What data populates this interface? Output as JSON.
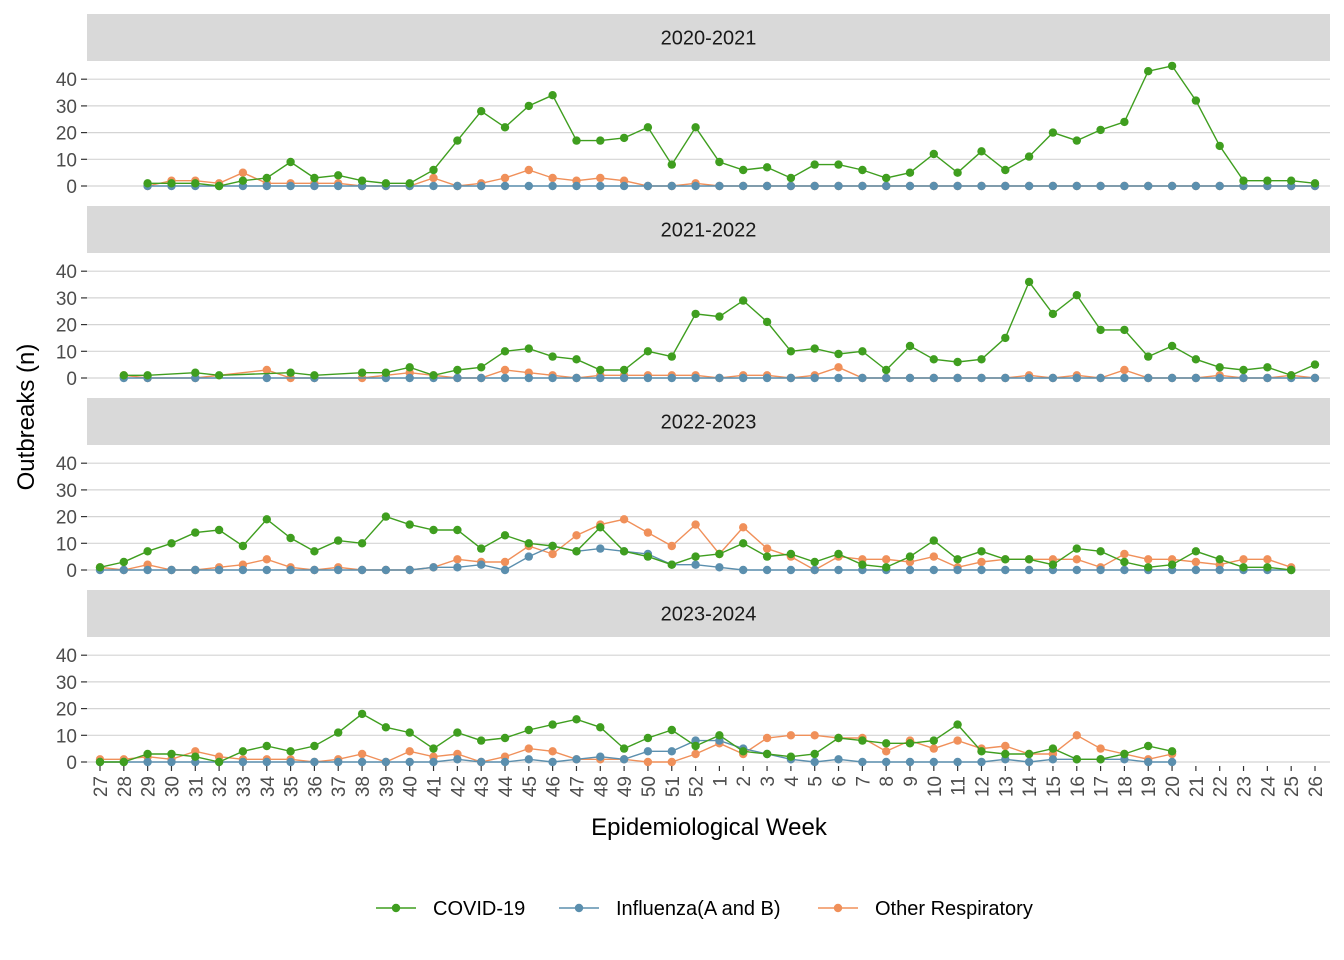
{
  "chart_data": {
    "type": "line",
    "xlabel": "Epidemiological Week",
    "ylabel": "Outbreaks (n)",
    "ylim": [
      0,
      45
    ],
    "yticks": [
      0,
      10,
      20,
      30,
      40
    ],
    "x_categories": [
      "27",
      "28",
      "29",
      "30",
      "31",
      "32",
      "33",
      "34",
      "35",
      "36",
      "37",
      "38",
      "39",
      "40",
      "41",
      "42",
      "43",
      "44",
      "45",
      "46",
      "47",
      "48",
      "49",
      "50",
      "51",
      "52",
      "1",
      "2",
      "3",
      "4",
      "5",
      "6",
      "7",
      "8",
      "9",
      "10",
      "11",
      "12",
      "13",
      "14",
      "15",
      "16",
      "17",
      "18",
      "19",
      "20",
      "21",
      "22",
      "23",
      "24",
      "25",
      "26"
    ],
    "legend_position": "bottom",
    "grid": "horizontal",
    "series_colors": {
      "COVID-19": "#3f9e1f",
      "Influenza(A and B)": "#5b8fae",
      "Other Respiratory": "#f0905a"
    },
    "legend": [
      "COVID-19",
      "Influenza(A and B)",
      "Other Respiratory"
    ],
    "panels": [
      {
        "title": "2020-2021",
        "series": [
          {
            "name": "COVID-19",
            "values": [
              null,
              null,
              1,
              1,
              1,
              0,
              2,
              3,
              9,
              3,
              4,
              2,
              1,
              1,
              6,
              17,
              28,
              22,
              30,
              34,
              17,
              17,
              18,
              22,
              8,
              22,
              9,
              6,
              7,
              3,
              8,
              8,
              6,
              3,
              5,
              12,
              5,
              13,
              6,
              11,
              20,
              17,
              21,
              24,
              43,
              45,
              32,
              15,
              2,
              2,
              2,
              1
            ]
          },
          {
            "name": "Influenza(A and B)",
            "values": [
              null,
              null,
              0,
              0,
              0,
              0,
              0,
              0,
              0,
              0,
              0,
              0,
              0,
              0,
              0,
              0,
              0,
              0,
              0,
              0,
              0,
              0,
              0,
              0,
              0,
              0,
              0,
              0,
              0,
              0,
              0,
              0,
              0,
              0,
              0,
              0,
              0,
              0,
              0,
              0,
              0,
              0,
              0,
              0,
              0,
              0,
              0,
              0,
              0,
              0,
              0,
              0
            ]
          },
          {
            "name": "Other Respiratory",
            "values": [
              null,
              null,
              0,
              2,
              2,
              1,
              5,
              1,
              1,
              1,
              1,
              0,
              0,
              0,
              3,
              0,
              1,
              3,
              6,
              3,
              2,
              3,
              2,
              0,
              0,
              1,
              0,
              0,
              0,
              0,
              0,
              0,
              0,
              0,
              0,
              0,
              0,
              0,
              0,
              0,
              0,
              0,
              0,
              0,
              0,
              0,
              0,
              0,
              0,
              0,
              0,
              0
            ]
          }
        ]
      },
      {
        "title": "2021-2022",
        "series": [
          {
            "name": "COVID-19",
            "values": [
              null,
              1,
              1,
              null,
              2,
              1,
              null,
              null,
              2,
              1,
              null,
              2,
              2,
              4,
              1,
              3,
              4,
              10,
              11,
              8,
              7,
              3,
              3,
              10,
              8,
              24,
              23,
              29,
              21,
              10,
              11,
              9,
              10,
              3,
              12,
              7,
              6,
              7,
              15,
              36,
              24,
              31,
              18,
              18,
              8,
              12,
              7,
              4,
              3,
              4,
              1,
              5
            ]
          },
          {
            "name": "Influenza(A and B)",
            "values": [
              null,
              0,
              0,
              null,
              0,
              null,
              null,
              0,
              null,
              0,
              null,
              null,
              0,
              0,
              0,
              0,
              0,
              0,
              0,
              0,
              0,
              0,
              0,
              0,
              0,
              0,
              0,
              0,
              0,
              0,
              0,
              0,
              0,
              0,
              0,
              0,
              0,
              0,
              0,
              0,
              0,
              0,
              0,
              0,
              0,
              0,
              0,
              0,
              0,
              0,
              0,
              0
            ]
          },
          {
            "name": "Other Respiratory",
            "values": [
              null,
              1,
              0,
              null,
              0,
              null,
              null,
              3,
              0,
              0,
              null,
              0,
              1,
              2,
              1,
              0,
              0,
              3,
              2,
              1,
              0,
              1,
              1,
              1,
              1,
              1,
              0,
              1,
              1,
              0,
              1,
              4,
              0,
              0,
              0,
              0,
              0,
              0,
              0,
              1,
              0,
              1,
              0,
              3,
              0,
              0,
              0,
              1,
              0,
              0,
              1,
              0
            ]
          }
        ]
      },
      {
        "title": "2022-2023",
        "series": [
          {
            "name": "COVID-19",
            "values": [
              1,
              3,
              7,
              10,
              14,
              15,
              9,
              19,
              12,
              7,
              11,
              10,
              20,
              17,
              15,
              15,
              8,
              13,
              10,
              9,
              7,
              16,
              7,
              5,
              2,
              5,
              6,
              10,
              5,
              6,
              3,
              6,
              2,
              1,
              5,
              11,
              4,
              7,
              4,
              4,
              2,
              8,
              7,
              3,
              1,
              2,
              7,
              4,
              1,
              1,
              0,
              null
            ]
          },
          {
            "name": "Influenza(A and B)",
            "values": [
              0,
              0,
              0,
              0,
              0,
              0,
              0,
              0,
              0,
              0,
              0,
              0,
              0,
              0,
              1,
              1,
              2,
              0,
              5,
              9,
              7,
              8,
              7,
              6,
              2,
              2,
              1,
              0,
              0,
              0,
              0,
              0,
              0,
              0,
              0,
              0,
              0,
              0,
              0,
              0,
              0,
              0,
              0,
              0,
              0,
              0,
              0,
              0,
              0,
              0,
              0,
              null
            ]
          },
          {
            "name": "Other Respiratory",
            "values": [
              1,
              0,
              2,
              0,
              0,
              1,
              2,
              4,
              1,
              0,
              1,
              0,
              0,
              0,
              1,
              4,
              3,
              3,
              9,
              6,
              13,
              17,
              19,
              14,
              9,
              17,
              6,
              16,
              8,
              5,
              0,
              5,
              4,
              4,
              3,
              5,
              1,
              3,
              4,
              4,
              4,
              4,
              1,
              6,
              4,
              4,
              3,
              2,
              4,
              4,
              1,
              null
            ]
          }
        ]
      },
      {
        "title": "2023-2024",
        "series": [
          {
            "name": "COVID-19",
            "values": [
              0,
              0,
              3,
              3,
              2,
              0,
              4,
              6,
              4,
              6,
              11,
              18,
              13,
              11,
              5,
              11,
              8,
              9,
              12,
              14,
              16,
              13,
              5,
              9,
              12,
              6,
              10,
              4,
              3,
              2,
              3,
              9,
              8,
              7,
              7,
              8,
              14,
              4,
              3,
              3,
              5,
              1,
              1,
              3,
              6,
              4,
              null,
              null,
              null,
              null,
              null,
              null
            ]
          },
          {
            "name": "Influenza(A and B)",
            "values": [
              0,
              0,
              0,
              0,
              0,
              0,
              0,
              0,
              0,
              0,
              0,
              0,
              0,
              0,
              0,
              1,
              0,
              0,
              1,
              0,
              1,
              2,
              1,
              4,
              4,
              8,
              8,
              5,
              3,
              1,
              0,
              1,
              0,
              0,
              0,
              0,
              0,
              0,
              1,
              0,
              1,
              1,
              1,
              1,
              0,
              0,
              null,
              null,
              null,
              null,
              null,
              null
            ]
          },
          {
            "name": "Other Respiratory",
            "values": [
              1,
              1,
              2,
              1,
              4,
              2,
              1,
              1,
              1,
              0,
              1,
              3,
              0,
              4,
              2,
              3,
              0,
              2,
              5,
              4,
              1,
              1,
              1,
              0,
              0,
              3,
              7,
              3,
              9,
              10,
              10,
              9,
              9,
              4,
              8,
              5,
              8,
              5,
              6,
              3,
              3,
              10,
              5,
              3,
              1,
              3,
              null,
              null,
              null,
              null,
              null,
              null
            ]
          }
        ]
      }
    ]
  }
}
